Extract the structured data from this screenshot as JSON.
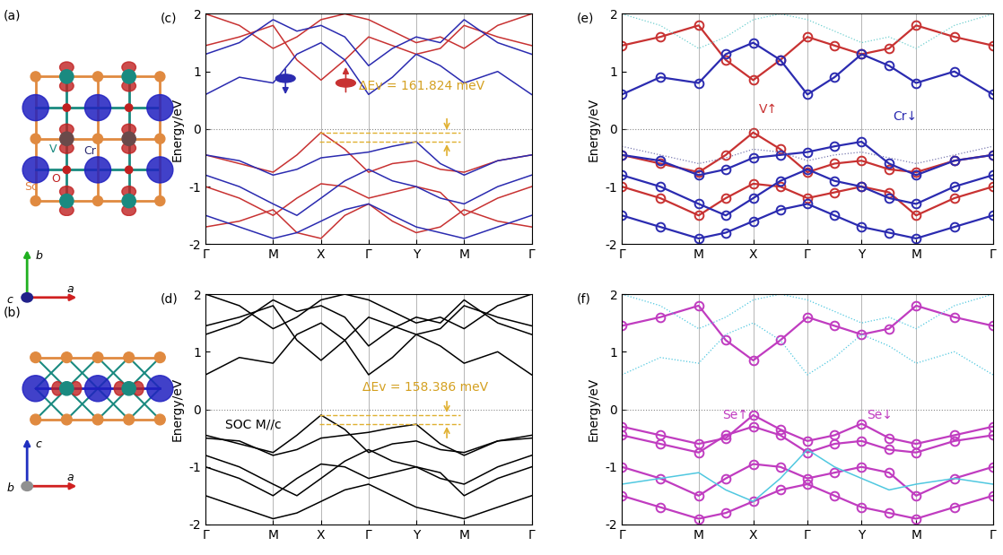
{
  "chart_data": [
    {
      "panel": "(c)",
      "type": "line",
      "ylabel": "Energy/eV",
      "xlim": [
        0,
        1
      ],
      "xticks": [
        {
          "value": 0,
          "label": "Γ"
        },
        {
          "value": 0.207,
          "label": "M"
        },
        {
          "value": 0.354,
          "label": "X"
        },
        {
          "value": 0.5,
          "label": "Γ"
        },
        {
          "value": 0.646,
          "label": "Y"
        },
        {
          "value": 0.793,
          "label": "M"
        },
        {
          "value": 1,
          "label": "Γ"
        }
      ],
      "ylim": [
        -2,
        2
      ],
      "yticks": [
        -2,
        -1,
        0,
        1,
        2
      ],
      "grid": "x",
      "fermi_level": 0,
      "vbm_levels": [
        -0.06,
        -0.222
      ],
      "annotations": [
        {
          "text": "ΔEv = 161.824 meV",
          "color": "#d4a020"
        }
      ],
      "x": [
        0,
        0.1035,
        0.207,
        0.28,
        0.354,
        0.427,
        0.5,
        0.573,
        0.646,
        0.72,
        0.793,
        0.896,
        1.0
      ],
      "series": [
        {
          "color": "#c83232",
          "values": [
            -0.45,
            -0.6,
            -0.75,
            -0.45,
            -0.06,
            -0.35,
            -0.75,
            -0.6,
            -0.55,
            -0.7,
            -0.75,
            -0.55,
            -0.45
          ]
        },
        {
          "color": "#c83232",
          "values": [
            1.45,
            1.6,
            1.8,
            1.2,
            0.85,
            1.2,
            1.6,
            1.45,
            1.3,
            1.4,
            1.8,
            1.6,
            1.45
          ]
        },
        {
          "color": "#c83232",
          "values": [
            -1.0,
            -1.2,
            -1.5,
            -1.2,
            -0.95,
            -1.0,
            -1.2,
            -1.1,
            -1.0,
            -1.1,
            -1.5,
            -1.2,
            -1.0
          ]
        },
        {
          "color": "#c83232",
          "values": [
            2.0,
            1.8,
            1.4,
            1.6,
            1.9,
            2.0,
            1.9,
            1.7,
            1.5,
            1.6,
            1.4,
            1.8,
            2.0
          ]
        },
        {
          "color": "#c83232",
          "values": [
            -1.7,
            -1.6,
            -1.4,
            -1.8,
            -1.9,
            -1.5,
            -1.3,
            -1.6,
            -1.8,
            -1.7,
            -1.4,
            -1.6,
            -1.7
          ]
        },
        {
          "color": "#2b2bb0",
          "values": [
            -0.45,
            -0.55,
            -0.8,
            -0.7,
            -0.5,
            -0.45,
            -0.4,
            -0.3,
            -0.22,
            -0.6,
            -0.8,
            -0.55,
            -0.45
          ]
        },
        {
          "color": "#2b2bb0",
          "values": [
            0.6,
            0.9,
            0.8,
            1.3,
            1.5,
            1.2,
            0.6,
            0.9,
            1.3,
            1.1,
            0.8,
            1.0,
            0.6
          ]
        },
        {
          "color": "#2b2bb0",
          "values": [
            1.3,
            1.5,
            1.9,
            1.7,
            1.8,
            1.6,
            1.1,
            1.4,
            1.6,
            1.5,
            1.9,
            1.5,
            1.3
          ]
        },
        {
          "color": "#2b2bb0",
          "values": [
            -0.8,
            -1.0,
            -1.3,
            -1.5,
            -1.2,
            -0.9,
            -0.7,
            -0.9,
            -1.0,
            -1.2,
            -1.3,
            -1.0,
            -0.8
          ]
        },
        {
          "color": "#2b2bb0",
          "values": [
            -1.5,
            -1.7,
            -1.9,
            -1.8,
            -1.6,
            -1.4,
            -1.3,
            -1.5,
            -1.7,
            -1.8,
            -1.9,
            -1.7,
            -1.5
          ]
        }
      ]
    },
    {
      "panel": "(d)",
      "type": "line",
      "ylabel": "Energy/eV",
      "xlim": [
        0,
        1
      ],
      "xticks": [
        {
          "value": 0,
          "label": "Γ"
        },
        {
          "value": 0.207,
          "label": "M"
        },
        {
          "value": 0.354,
          "label": "X"
        },
        {
          "value": 0.5,
          "label": "Γ"
        },
        {
          "value": 0.646,
          "label": "Y"
        },
        {
          "value": 0.793,
          "label": "M"
        },
        {
          "value": 1,
          "label": "Γ"
        }
      ],
      "ylim": [
        -2,
        2
      ],
      "yticks": [
        -2,
        -1,
        0,
        1,
        2
      ],
      "grid": "x",
      "fermi_level": 0,
      "vbm_levels": [
        -0.1,
        -0.258
      ],
      "annotations": [
        {
          "text": "SOC M//c",
          "color": "#000000"
        },
        {
          "text": "ΔEv = 158.386 meV",
          "color": "#d4a020"
        }
      ],
      "x": [
        0,
        0.1035,
        0.207,
        0.28,
        0.354,
        0.427,
        0.5,
        0.573,
        0.646,
        0.72,
        0.793,
        0.896,
        1.0
      ],
      "series": [
        {
          "color": "#000000",
          "values": [
            -0.45,
            -0.6,
            -0.75,
            -0.45,
            -0.1,
            -0.35,
            -0.75,
            -0.6,
            -0.55,
            -0.7,
            -0.75,
            -0.55,
            -0.45
          ]
        },
        {
          "color": "#000000",
          "values": [
            -0.5,
            -0.55,
            -0.8,
            -0.7,
            -0.5,
            -0.45,
            -0.4,
            -0.32,
            -0.26,
            -0.6,
            -0.8,
            -0.55,
            -0.5
          ]
        },
        {
          "color": "#000000",
          "values": [
            -1.0,
            -1.2,
            -1.5,
            -1.2,
            -0.95,
            -1.0,
            -1.2,
            -1.1,
            -1.0,
            -1.1,
            -1.5,
            -1.2,
            -1.0
          ]
        },
        {
          "color": "#000000",
          "values": [
            -0.8,
            -1.0,
            -1.3,
            -1.5,
            -1.2,
            -0.9,
            -0.7,
            -0.9,
            -1.0,
            -1.2,
            -1.3,
            -1.0,
            -0.8
          ]
        },
        {
          "color": "#000000",
          "values": [
            -1.5,
            -1.7,
            -1.9,
            -1.8,
            -1.6,
            -1.4,
            -1.3,
            -1.5,
            -1.7,
            -1.8,
            -1.9,
            -1.7,
            -1.5
          ]
        },
        {
          "color": "#000000",
          "values": [
            0.6,
            0.9,
            0.8,
            1.3,
            1.5,
            1.2,
            0.6,
            0.9,
            1.3,
            1.1,
            0.8,
            1.0,
            0.6
          ]
        },
        {
          "color": "#000000",
          "values": [
            1.45,
            1.6,
            1.8,
            1.2,
            0.85,
            1.2,
            1.6,
            1.45,
            1.3,
            1.4,
            1.8,
            1.6,
            1.45
          ]
        },
        {
          "color": "#000000",
          "values": [
            1.3,
            1.5,
            1.9,
            1.7,
            1.8,
            1.6,
            1.1,
            1.4,
            1.6,
            1.5,
            1.9,
            1.5,
            1.3
          ]
        },
        {
          "color": "#000000",
          "values": [
            2.0,
            1.8,
            1.4,
            1.6,
            1.9,
            2.0,
            1.9,
            1.7,
            1.5,
            1.6,
            1.4,
            1.8,
            2.0
          ]
        }
      ]
    },
    {
      "panel": "(e)",
      "type": "line",
      "ylabel": "Energy/eV",
      "xlim": [
        0,
        1
      ],
      "xticks": [
        {
          "value": 0,
          "label": "Γ"
        },
        {
          "value": 0.207,
          "label": "M"
        },
        {
          "value": 0.354,
          "label": "X"
        },
        {
          "value": 0.5,
          "label": "Γ"
        },
        {
          "value": 0.646,
          "label": "Y"
        },
        {
          "value": 0.793,
          "label": "M"
        },
        {
          "value": 1,
          "label": "Γ"
        }
      ],
      "ylim": [
        -2,
        2
      ],
      "yticks": [
        -2,
        -1,
        0,
        1,
        2
      ],
      "grid": "x",
      "fermi_level": 0,
      "annotations": [
        {
          "text": "V↑",
          "color": "#c83232"
        },
        {
          "text": "Cr↓",
          "color": "#2b2bb0"
        }
      ],
      "x": [
        0,
        0.1035,
        0.207,
        0.28,
        0.354,
        0.427,
        0.5,
        0.573,
        0.646,
        0.72,
        0.793,
        0.896,
        1.0
      ],
      "series": [
        {
          "color": "#c83232",
          "marker": "o",
          "line_style": "solid",
          "values": [
            -0.45,
            -0.6,
            -0.75,
            -0.45,
            -0.06,
            -0.35,
            -0.75,
            -0.6,
            -0.55,
            -0.7,
            -0.75,
            -0.55,
            -0.45
          ]
        },
        {
          "color": "#c83232",
          "marker": "o",
          "line_style": "solid",
          "values": [
            1.45,
            1.6,
            1.8,
            1.2,
            0.85,
            1.2,
            1.6,
            1.45,
            1.3,
            1.4,
            1.8,
            1.6,
            1.45
          ]
        },
        {
          "color": "#c83232",
          "marker": "o",
          "line_style": "solid",
          "values": [
            -1.0,
            -1.2,
            -1.5,
            -1.2,
            -0.95,
            -1.0,
            -1.2,
            -1.1,
            -1.0,
            -1.1,
            -1.5,
            -1.2,
            -1.0
          ]
        },
        {
          "color": "#2b2bb0",
          "marker": "o",
          "line_style": "solid",
          "values": [
            -0.45,
            -0.55,
            -0.8,
            -0.7,
            -0.5,
            -0.45,
            -0.4,
            -0.3,
            -0.22,
            -0.6,
            -0.8,
            -0.55,
            -0.45
          ]
        },
        {
          "color": "#2b2bb0",
          "marker": "o",
          "line_style": "solid",
          "values": [
            0.6,
            0.9,
            0.8,
            1.3,
            1.5,
            1.2,
            0.6,
            0.9,
            1.3,
            1.1,
            0.8,
            1.0,
            0.6
          ]
        },
        {
          "color": "#2b2bb0",
          "marker": "o",
          "line_style": "solid",
          "values": [
            -0.8,
            -1.0,
            -1.3,
            -1.5,
            -1.2,
            -0.9,
            -0.7,
            -0.9,
            -1.0,
            -1.2,
            -1.3,
            -1.0,
            -0.8
          ]
        },
        {
          "color": "#2b2bb0",
          "marker": "o",
          "line_style": "solid",
          "values": [
            -1.5,
            -1.7,
            -1.9,
            -1.8,
            -1.6,
            -1.4,
            -1.3,
            -1.5,
            -1.7,
            -1.8,
            -1.9,
            -1.7,
            -1.5
          ]
        },
        {
          "color": "#7a7ab0",
          "line_style": "dotted",
          "values": [
            -0.3,
            -0.45,
            -0.6,
            -0.5,
            -0.35,
            -0.4,
            -0.55,
            -0.45,
            -0.4,
            -0.5,
            -0.6,
            -0.45,
            -0.3
          ]
        },
        {
          "color": "#70d0d0",
          "line_style": "dotted",
          "values": [
            2.0,
            1.8,
            1.4,
            1.6,
            1.9,
            2.0,
            1.9,
            1.7,
            1.5,
            1.6,
            1.4,
            1.8,
            2.0
          ]
        }
      ]
    },
    {
      "panel": "(f)",
      "type": "line",
      "ylabel": "Energy/eV",
      "xlim": [
        0,
        1
      ],
      "xticks": [
        {
          "value": 0,
          "label": "Γ"
        },
        {
          "value": 0.207,
          "label": "M"
        },
        {
          "value": 0.354,
          "label": "X"
        },
        {
          "value": 0.5,
          "label": "Γ"
        },
        {
          "value": 0.646,
          "label": "Y"
        },
        {
          "value": 0.793,
          "label": "M"
        },
        {
          "value": 1,
          "label": "Γ"
        }
      ],
      "ylim": [
        -2,
        2
      ],
      "yticks": [
        -2,
        -1,
        0,
        1,
        2
      ],
      "grid": "x",
      "fermi_level": 0,
      "annotations": [
        {
          "text": "Se↑",
          "color": "#c03cc0"
        },
        {
          "text": "Se↓",
          "color": "#c03cc0"
        }
      ],
      "x": [
        0,
        0.1035,
        0.207,
        0.28,
        0.354,
        0.427,
        0.5,
        0.573,
        0.646,
        0.72,
        0.793,
        0.896,
        1.0
      ],
      "series": [
        {
          "color": "#c03cc0",
          "marker": "o",
          "line_style": "solid",
          "values": [
            -0.3,
            -0.45,
            -0.6,
            -0.5,
            -0.1,
            -0.35,
            -0.55,
            -0.45,
            -0.25,
            -0.5,
            -0.6,
            -0.45,
            -0.3
          ]
        },
        {
          "color": "#c03cc0",
          "marker": "o",
          "line_style": "solid",
          "values": [
            -0.45,
            -0.6,
            -0.75,
            -0.45,
            -0.3,
            -0.45,
            -0.75,
            -0.6,
            -0.55,
            -0.7,
            -0.75,
            -0.55,
            -0.45
          ]
        },
        {
          "color": "#c03cc0",
          "marker": "o",
          "line_style": "solid",
          "values": [
            -1.0,
            -1.2,
            -1.5,
            -1.2,
            -0.95,
            -1.0,
            -1.2,
            -1.1,
            -1.0,
            -1.1,
            -1.5,
            -1.2,
            -1.0
          ]
        },
        {
          "color": "#c03cc0",
          "marker": "o",
          "line_style": "solid",
          "values": [
            -1.5,
            -1.7,
            -1.9,
            -1.8,
            -1.6,
            -1.4,
            -1.3,
            -1.5,
            -1.7,
            -1.8,
            -1.9,
            -1.7,
            -1.5
          ]
        },
        {
          "color": "#c03cc0",
          "marker": "o",
          "line_style": "solid",
          "values": [
            1.45,
            1.6,
            1.8,
            1.2,
            0.85,
            1.2,
            1.6,
            1.45,
            1.3,
            1.4,
            1.8,
            1.6,
            1.45
          ]
        },
        {
          "color": "#50c8e0",
          "line_style": "solid",
          "values": [
            -1.3,
            -1.2,
            -1.1,
            -1.4,
            -1.6,
            -1.2,
            -0.7,
            -1.0,
            -1.2,
            -1.4,
            -1.3,
            -1.2,
            -1.3
          ]
        },
        {
          "color": "#50c8e0",
          "line_style": "dotted",
          "values": [
            0.6,
            0.9,
            0.8,
            1.3,
            1.5,
            1.2,
            0.6,
            0.9,
            1.3,
            1.1,
            0.8,
            1.0,
            0.6
          ]
        },
        {
          "color": "#50c8e0",
          "line_style": "dotted",
          "values": [
            2.0,
            1.8,
            1.4,
            1.6,
            1.9,
            2.0,
            1.9,
            1.7,
            1.5,
            1.6,
            1.4,
            1.8,
            2.0
          ]
        }
      ]
    }
  ],
  "structures": [
    {
      "label": "(a)",
      "atoms": [
        {
          "text": "V",
          "color": "#1a8a80"
        },
        {
          "text": "Cr",
          "color": "#2a2a70"
        },
        {
          "text": "O",
          "color": "#c02020"
        },
        {
          "text": "Sc",
          "color": "#e08040"
        }
      ],
      "axes": [
        {
          "text": "b",
          "color": "#20b020"
        },
        {
          "text": "c",
          "color": "#20208a"
        },
        {
          "text": "a",
          "color": "#d02020"
        }
      ]
    },
    {
      "label": "(b)",
      "axes": [
        {
          "text": "c",
          "color": "#2030c0"
        },
        {
          "text": "b",
          "color": "#909090"
        },
        {
          "text": "a",
          "color": "#d02020"
        }
      ]
    }
  ]
}
